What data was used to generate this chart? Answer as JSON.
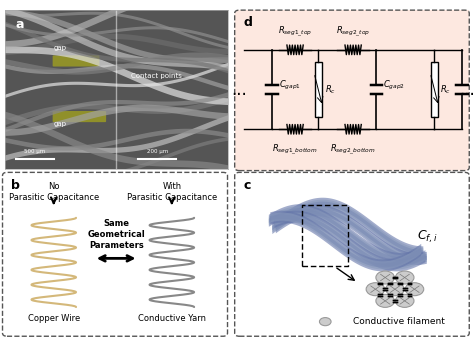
{
  "fig_width": 4.74,
  "fig_height": 3.38,
  "bg_color": "#f5f5f5",
  "panel_a_label": "a",
  "panel_b_label": "b",
  "panel_c_label": "c",
  "panel_d_label": "d",
  "panel_d_bg": "#fde8e0",
  "copper_color": "#d4b87a",
  "yarn_color": "#888888",
  "text_color": "#111111",
  "arrow_color": "#111111",
  "dash_color": "#555555",
  "b_title_left": "No\nParasitic Capacitance",
  "b_title_right": "With\nParasitic Capacitance",
  "b_arrow_text": "Same\nGeometrical\nParameters",
  "b_label_left": "Copper Wire",
  "b_label_right": "Conductive Yarn",
  "c_label": "Conductive filament",
  "c_formula": "$C_{f,i}$",
  "d_rseg1_top": "$R_{seg1\\_top}$",
  "d_rseg2_top": "$R_{seg2\\_top}$",
  "d_rseg1_bot": "$R_{seg1\\_bottom}$",
  "d_rseg2_bot": "$R_{seg2\\_bottom}$",
  "d_cgap1": "$C_{gap1}$",
  "d_cgap2": "$C_{gap2}$",
  "d_rc": "$R_c$",
  "d_dots": "..."
}
